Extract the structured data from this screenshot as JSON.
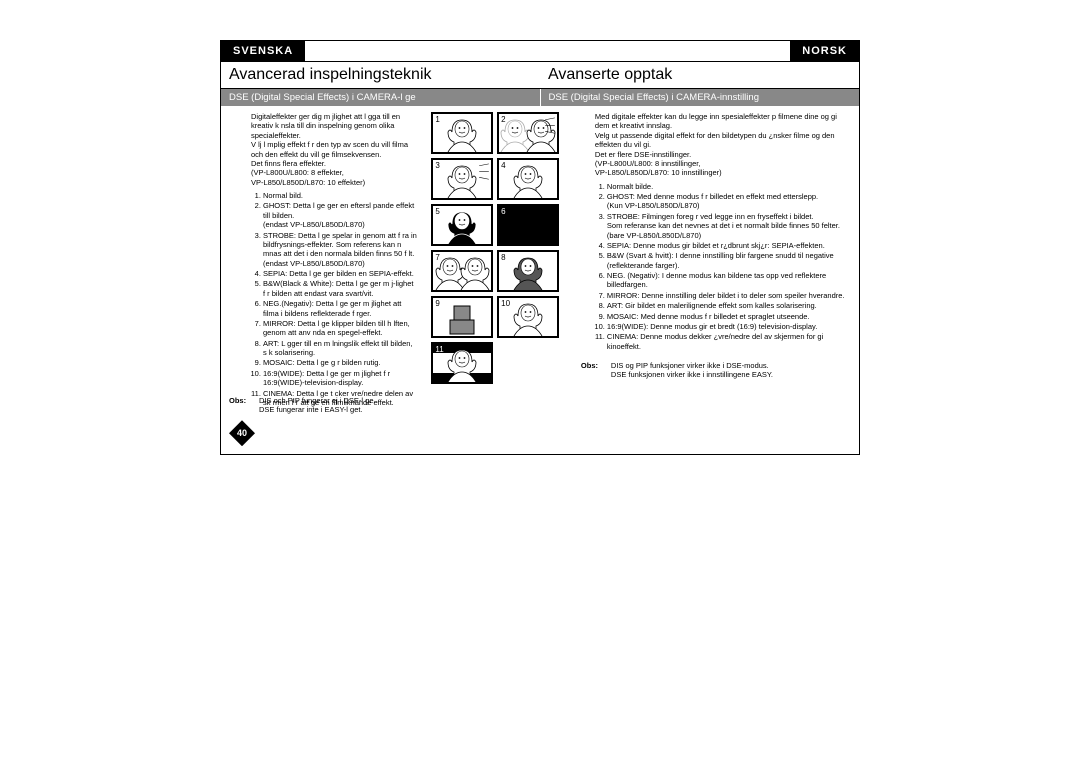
{
  "lang_left": "SVENSKA",
  "lang_right": "NORSK",
  "title_left": "Avancerad inspelningsteknik",
  "title_right": "Avanserte opptak",
  "subtitle_left": "DSE (Digital Special Effects) i CAMERA-l ge",
  "subtitle_right": "DSE (Digital Special Effects) i CAMERA-innstilling",
  "intro_left": "Digitaleffekter ger dig m jlighet att l gga till en kreativ k nsla till din inspelning genom olika specialeffekter.\nV lj l mplig effekt f r den typ av scen du vill filma och den effekt du vill ge filmsekvensen.\nDet finns flera effekter.\n(VP-L800U/L800: 8 effekter,\nVP-L850/L850D/L870: 10 effekter)",
  "intro_right": "Med digitale effekter kan du legge inn spesialeffekter p  filmene dine og gi dem et kreativt innslag.\nVelg ut passende digital effekt for den bildetypen du ¿nsker  filme og den effekten du vil gi.\nDet er flere DSE-innstillinger.\n(VP-L800U/L800: 8 innstillinger,\nVP-L850/L850D/L870: 10 innstillinger)",
  "list_left": [
    "Normal bild.",
    "GHOST: Detta l ge ger en eftersl pande effekt till bilden.\n(endast VP-L850/L850D/L870)",
    "STROBE: Detta l ge spelar in genom att f ra in bildfrysnings-effekter. Som referens kan n mnas att det i den normala bilden finns 50 f lt.\n(endast VP-L850/L850D/L870)",
    "SEPIA: Detta l ge ger bilden en SEPIA-effekt.",
    "B&W(Black & White): Detta l ge ger m j-lighet f r bilden att endast vara svart/vit.",
    "NEG.(Negativ): Detta l ge ger m jlighet att filma i bildens reflekterade f rger.",
    "MIRROR: Detta l ge klipper bilden till h lften, genom att anv nda en spegel-effekt.",
    "ART: L gger till en m lningslik effekt till bilden, s k solarisering.",
    "MOSAIC: Detta l ge g r bilden rutig.",
    "16:9(WIDE): Detta l ge ger m jlighet f r 16:9(WIDE)-television-display.",
    "CINEMA: Detta l ge t cker  vre/nedre delen av sk rmen f r att ge en filmliknande effekt."
  ],
  "list_right": [
    "Normalt bilde.",
    "GHOST: Med denne modus f r billedet en effekt med etterslepp.\n(Kun VP-L850/L850D/L870)",
    "STROBE: Filmingen foreg r ved  legge inn en fryseffekt i bildet.\nSom referanse kan det nevnes at det i et normalt bilde finnes 50 felter.\n(bare VP-L850/L850D/L870)",
    "SEPIA: Denne modus gir bildet et r¿dbrunt skj¿r: SEPIA-effekten.",
    "B&W (Svart & hvitt): I denne innstilling blir fargene snudd til negative (reflekterande farger).",
    "NEG. (Negativ): I denne modus kan bildene tas opp ved   reflektere billedfargen.",
    "MIRROR: Denne innstilling deler bildet i to deler som speiler hverandre.",
    "ART: Gir bildet en malerilignende effekt som kalles solarisering.",
    "MOSAIC: Med denne modus f r billedet et spraglet utseende.",
    "16:9(WIDE): Denne modus gir et bredt (16:9) television-display.",
    "CINEMA: Denne modus dekker ¿vre/nedre del av skjermen for   gi kinoeffekt."
  ],
  "obs_label": "Obs:",
  "obs_left": "DIS och PIP fungerar ej i DSE-l ge.\nDSE fungerar inte i EASY-l get.",
  "obs_right": "DIS og PIP funksjoner virker ikke i DSE-modus.\nDSE funksjonen virker ikke i innstillingene EASY.",
  "page_number": "40",
  "thumbs": [
    "1",
    "2",
    "3",
    "4",
    "5",
    "6",
    "7",
    "8",
    "9",
    "10",
    "11"
  ],
  "colors": {
    "header_bg": "#000000",
    "header_fg": "#ffffff",
    "sub_bg": "#888888",
    "sub_fg": "#ffffff",
    "page_bg": "#ffffff",
    "border": "#000000"
  }
}
